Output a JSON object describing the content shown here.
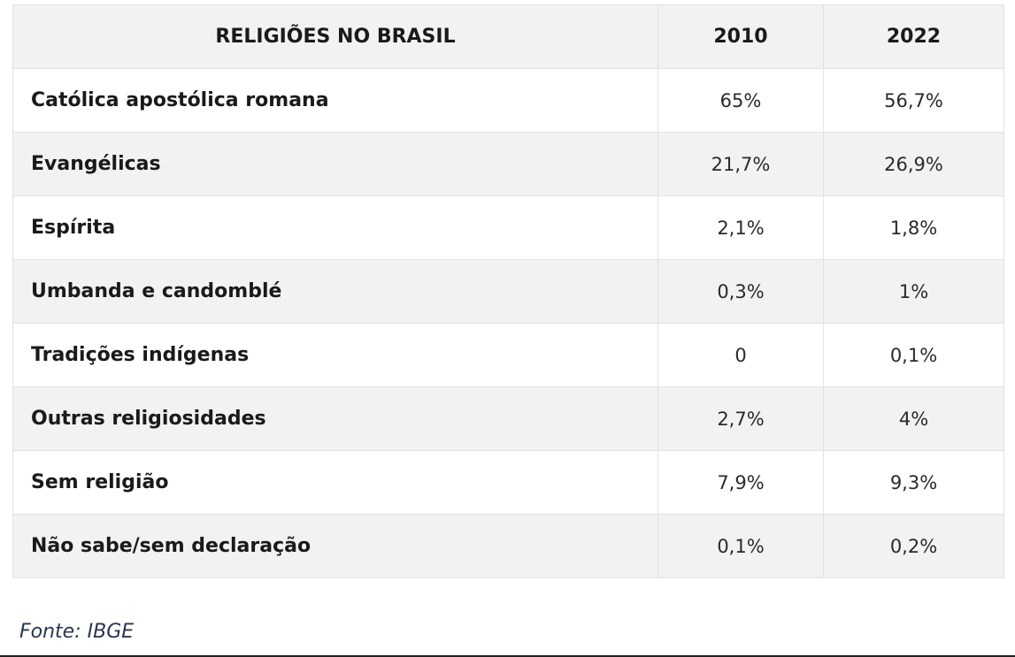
{
  "table": {
    "headers": [
      "RELIGIÕES NO BRASIL",
      "2010",
      "2022"
    ],
    "rows": [
      {
        "name": "Católica apostólica romana",
        "y2010": "65%",
        "y2022": "56,7%"
      },
      {
        "name": "Evangélicas",
        "y2010": "21,7%",
        "y2022": "26,9%"
      },
      {
        "name": "Espírita",
        "y2010": "2,1%",
        "y2022": "1,8%"
      },
      {
        "name": "Umbanda e candomblé",
        "y2010": "0,3%",
        "y2022": "1%"
      },
      {
        "name": "Tradições indígenas",
        "y2010": "0",
        "y2022": "0,1%"
      },
      {
        "name": "Outras religiosidades",
        "y2010": "2,7%",
        "y2022": "4%"
      },
      {
        "name": "Sem religião",
        "y2010": "7,9%",
        "y2022": "9,3%"
      },
      {
        "name": "Não sabe/sem declaração",
        "y2010": "0,1%",
        "y2022": "0,2%"
      }
    ]
  },
  "source": "Fonte: IBGE"
}
